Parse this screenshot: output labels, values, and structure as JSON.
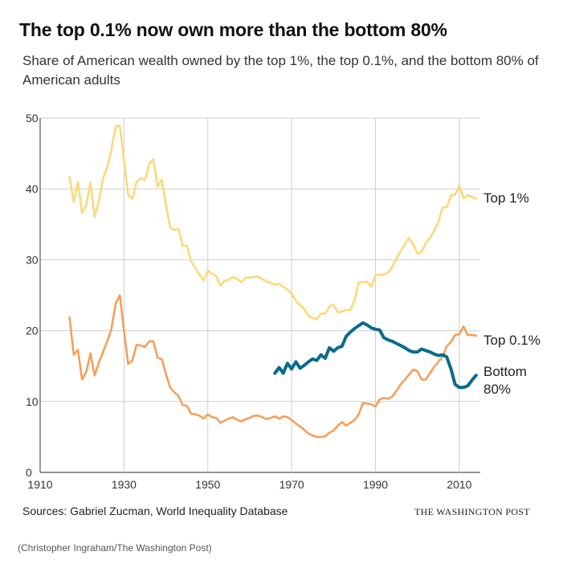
{
  "header": {
    "title": "The top 0.1% now own more than the bottom 80%",
    "subtitle": "Share of American wealth owned by the top 1%, the top 0.1%, and the bottom 80% of American adults"
  },
  "footer": {
    "source": "Sources: Gabriel Zucman, World Inequality Database",
    "brand": "THE WASHINGTON POST",
    "credit": "(Christopher Ingraham/The Washington Post)"
  },
  "chart_data": {
    "type": "line",
    "xlim": [
      1910,
      2015
    ],
    "ylim": [
      0,
      50
    ],
    "xticks": [
      1910,
      1930,
      1950,
      1970,
      1990,
      2010
    ],
    "yticks": [
      0,
      10,
      20,
      30,
      40,
      50
    ],
    "grid": true,
    "legend": "direct labels at line ends",
    "series": [
      {
        "name": "Top 1%",
        "label_lines": [
          "Top 1%"
        ],
        "color": "#fcd97a",
        "points": [
          [
            1917,
            41.7
          ],
          [
            1918,
            38.2
          ],
          [
            1919,
            41.0
          ],
          [
            1920,
            36.6
          ],
          [
            1921,
            37.8
          ],
          [
            1922,
            40.9
          ],
          [
            1923,
            36.1
          ],
          [
            1924,
            38.3
          ],
          [
            1925,
            41.5
          ],
          [
            1926,
            43.0
          ],
          [
            1927,
            45.5
          ],
          [
            1928,
            48.8
          ],
          [
            1929,
            48.9
          ],
          [
            1930,
            44.0
          ],
          [
            1931,
            39.2
          ],
          [
            1932,
            38.6
          ],
          [
            1933,
            41.0
          ],
          [
            1934,
            41.5
          ],
          [
            1935,
            41.3
          ],
          [
            1936,
            43.5
          ],
          [
            1937,
            44.2
          ],
          [
            1938,
            40.3
          ],
          [
            1939,
            41.3
          ],
          [
            1940,
            37.8
          ],
          [
            1941,
            34.6
          ],
          [
            1942,
            34.2
          ],
          [
            1943,
            34.4
          ],
          [
            1944,
            32.0
          ],
          [
            1945,
            32.0
          ],
          [
            1946,
            29.8
          ],
          [
            1947,
            28.9
          ],
          [
            1948,
            27.9
          ],
          [
            1949,
            27.1
          ],
          [
            1950,
            28.5
          ],
          [
            1951,
            28.0
          ],
          [
            1952,
            27.7
          ],
          [
            1953,
            26.4
          ],
          [
            1954,
            27.0
          ],
          [
            1955,
            27.2
          ],
          [
            1956,
            27.6
          ],
          [
            1957,
            27.3
          ],
          [
            1958,
            26.8
          ],
          [
            1959,
            27.5
          ],
          [
            1960,
            27.5
          ],
          [
            1961,
            27.6
          ],
          [
            1962,
            27.6
          ],
          [
            1963,
            27.3
          ],
          [
            1964,
            26.9
          ],
          [
            1965,
            26.8
          ],
          [
            1966,
            26.5
          ],
          [
            1967,
            26.6
          ],
          [
            1968,
            26.2
          ],
          [
            1969,
            25.8
          ],
          [
            1970,
            25.2
          ],
          [
            1971,
            24.2
          ],
          [
            1972,
            23.6
          ],
          [
            1973,
            23.1
          ],
          [
            1974,
            22.1
          ],
          [
            1975,
            21.8
          ],
          [
            1976,
            21.6
          ],
          [
            1977,
            22.4
          ],
          [
            1978,
            22.4
          ],
          [
            1979,
            23.4
          ],
          [
            1980,
            23.7
          ],
          [
            1981,
            22.6
          ],
          [
            1982,
            22.7
          ],
          [
            1983,
            22.9
          ],
          [
            1984,
            22.9
          ],
          [
            1985,
            24.3
          ],
          [
            1986,
            26.8
          ],
          [
            1987,
            26.8
          ],
          [
            1988,
            26.9
          ],
          [
            1989,
            26.2
          ],
          [
            1990,
            27.8
          ],
          [
            1991,
            27.9
          ],
          [
            1992,
            27.9
          ],
          [
            1993,
            28.2
          ],
          [
            1994,
            29.0
          ],
          [
            1995,
            30.2
          ],
          [
            1996,
            31.2
          ],
          [
            1997,
            32.2
          ],
          [
            1998,
            33.1
          ],
          [
            1999,
            32.2
          ],
          [
            2000,
            30.9
          ],
          [
            2001,
            31.1
          ],
          [
            2002,
            32.4
          ],
          [
            2003,
            33.1
          ],
          [
            2004,
            34.1
          ],
          [
            2005,
            35.3
          ],
          [
            2006,
            37.4
          ],
          [
            2007,
            37.4
          ],
          [
            2008,
            39.1
          ],
          [
            2009,
            39.2
          ],
          [
            2010,
            40.5
          ],
          [
            2011,
            38.7
          ],
          [
            2012,
            39.1
          ],
          [
            2013,
            38.9
          ],
          [
            2014,
            38.6
          ]
        ]
      },
      {
        "name": "Top 0.1%",
        "label_lines": [
          "Top 0.1%"
        ],
        "color": "#f5a05a",
        "points": [
          [
            1917,
            21.9
          ],
          [
            1918,
            16.6
          ],
          [
            1919,
            17.3
          ],
          [
            1920,
            13.1
          ],
          [
            1921,
            14.2
          ],
          [
            1922,
            16.8
          ],
          [
            1923,
            13.7
          ],
          [
            1924,
            15.5
          ],
          [
            1925,
            17.0
          ],
          [
            1926,
            18.5
          ],
          [
            1927,
            20.2
          ],
          [
            1928,
            23.8
          ],
          [
            1929,
            25.0
          ],
          [
            1930,
            20.0
          ],
          [
            1931,
            15.3
          ],
          [
            1932,
            15.8
          ],
          [
            1933,
            18.0
          ],
          [
            1934,
            17.9
          ],
          [
            1935,
            17.7
          ],
          [
            1936,
            18.5
          ],
          [
            1937,
            18.5
          ],
          [
            1938,
            16.2
          ],
          [
            1939,
            16.0
          ],
          [
            1940,
            13.9
          ],
          [
            1941,
            12.0
          ],
          [
            1942,
            11.3
          ],
          [
            1943,
            10.8
          ],
          [
            1944,
            9.5
          ],
          [
            1945,
            9.4
          ],
          [
            1946,
            8.3
          ],
          [
            1947,
            8.2
          ],
          [
            1948,
            8.0
          ],
          [
            1949,
            7.6
          ],
          [
            1950,
            8.2
          ],
          [
            1951,
            7.8
          ],
          [
            1952,
            7.7
          ],
          [
            1953,
            7.0
          ],
          [
            1954,
            7.3
          ],
          [
            1955,
            7.6
          ],
          [
            1956,
            7.8
          ],
          [
            1957,
            7.4
          ],
          [
            1958,
            7.2
          ],
          [
            1959,
            7.5
          ],
          [
            1960,
            7.7
          ],
          [
            1961,
            8.0
          ],
          [
            1962,
            8.0
          ],
          [
            1963,
            7.8
          ],
          [
            1964,
            7.5
          ],
          [
            1965,
            7.7
          ],
          [
            1966,
            7.9
          ],
          [
            1967,
            7.6
          ],
          [
            1968,
            7.9
          ],
          [
            1969,
            7.8
          ],
          [
            1970,
            7.4
          ],
          [
            1971,
            6.9
          ],
          [
            1972,
            6.5
          ],
          [
            1973,
            6.0
          ],
          [
            1974,
            5.5
          ],
          [
            1975,
            5.2
          ],
          [
            1976,
            5.0
          ],
          [
            1977,
            5.0
          ],
          [
            1978,
            5.1
          ],
          [
            1979,
            5.6
          ],
          [
            1980,
            5.9
          ],
          [
            1981,
            6.6
          ],
          [
            1982,
            7.1
          ],
          [
            1983,
            6.6
          ],
          [
            1984,
            7.0
          ],
          [
            1985,
            7.4
          ],
          [
            1986,
            8.2
          ],
          [
            1987,
            9.8
          ],
          [
            1988,
            9.7
          ],
          [
            1989,
            9.6
          ],
          [
            1990,
            9.3
          ],
          [
            1991,
            10.3
          ],
          [
            1992,
            10.5
          ],
          [
            1993,
            10.4
          ],
          [
            1994,
            10.7
          ],
          [
            1995,
            11.5
          ],
          [
            1996,
            12.4
          ],
          [
            1997,
            13.1
          ],
          [
            1998,
            13.8
          ],
          [
            1999,
            14.5
          ],
          [
            2000,
            14.3
          ],
          [
            2001,
            13.1
          ],
          [
            2002,
            13.1
          ],
          [
            2003,
            14.0
          ],
          [
            2004,
            14.9
          ],
          [
            2005,
            15.6
          ],
          [
            2006,
            16.3
          ],
          [
            2007,
            17.8
          ],
          [
            2008,
            18.4
          ],
          [
            2009,
            19.4
          ],
          [
            2010,
            19.5
          ],
          [
            2011,
            20.6
          ],
          [
            2012,
            19.4
          ],
          [
            2013,
            19.4
          ],
          [
            2014,
            19.3
          ]
        ]
      },
      {
        "name": "Bottom 80%",
        "label_lines": [
          "Bottom",
          "80%"
        ],
        "color": "#0b6b8c",
        "points": [
          [
            1966,
            14.0
          ],
          [
            1967,
            14.8
          ],
          [
            1968,
            14.0
          ],
          [
            1969,
            15.4
          ],
          [
            1970,
            14.6
          ],
          [
            1971,
            15.6
          ],
          [
            1972,
            14.7
          ],
          [
            1973,
            15.1
          ],
          [
            1974,
            15.6
          ],
          [
            1975,
            16.0
          ],
          [
            1976,
            15.8
          ],
          [
            1977,
            16.6
          ],
          [
            1978,
            16.1
          ],
          [
            1979,
            17.6
          ],
          [
            1980,
            17.1
          ],
          [
            1981,
            17.6
          ],
          [
            1982,
            17.8
          ],
          [
            1983,
            19.2
          ],
          [
            1984,
            19.8
          ],
          [
            1985,
            20.3
          ],
          [
            1986,
            20.7
          ],
          [
            1987,
            21.1
          ],
          [
            1988,
            20.8
          ],
          [
            1989,
            20.4
          ],
          [
            1990,
            20.2
          ],
          [
            1991,
            20.1
          ],
          [
            1992,
            19.0
          ],
          [
            1993,
            18.7
          ],
          [
            1994,
            18.5
          ],
          [
            1995,
            18.2
          ],
          [
            1996,
            17.9
          ],
          [
            1997,
            17.6
          ],
          [
            1998,
            17.2
          ],
          [
            1999,
            17.0
          ],
          [
            2000,
            17.0
          ],
          [
            2001,
            17.4
          ],
          [
            2002,
            17.2
          ],
          [
            2003,
            17.0
          ],
          [
            2004,
            16.7
          ],
          [
            2005,
            16.5
          ],
          [
            2006,
            16.6
          ],
          [
            2007,
            16.3
          ],
          [
            2008,
            14.6
          ],
          [
            2009,
            12.4
          ],
          [
            2010,
            12.0
          ],
          [
            2011,
            12.0
          ],
          [
            2012,
            12.2
          ],
          [
            2013,
            13.0
          ],
          [
            2014,
            13.7
          ]
        ]
      }
    ]
  }
}
